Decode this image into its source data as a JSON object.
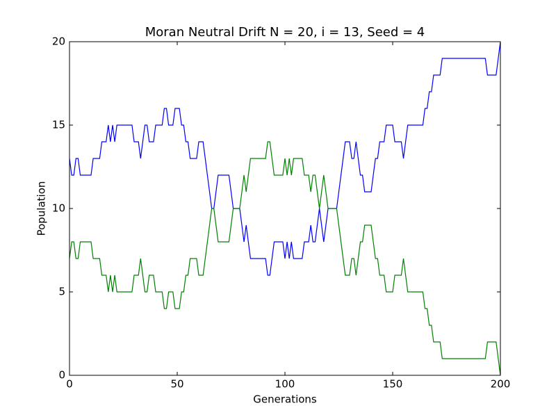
{
  "chart_data": {
    "type": "line",
    "title": "Moran Neutral Drift N = 20, i = 13, Seed = 4",
    "x_label": "Generations",
    "y_label": "Population",
    "x": [
      0,
      1,
      2,
      3,
      4,
      5,
      6,
      7,
      8,
      9,
      10,
      11,
      12,
      13,
      14,
      15,
      16,
      17,
      18,
      19,
      20,
      21,
      22,
      23,
      24,
      25,
      26,
      27,
      28,
      29,
      30,
      31,
      32,
      33,
      34,
      35,
      36,
      37,
      38,
      39,
      40,
      41,
      42,
      43,
      44,
      45,
      46,
      47,
      48,
      49,
      50,
      51,
      52,
      53,
      54,
      55,
      56,
      57,
      58,
      59,
      60,
      61,
      62,
      63,
      64,
      65,
      66,
      67,
      68,
      69,
      70,
      71,
      72,
      73,
      74,
      75,
      76,
      77,
      78,
      79,
      80,
      81,
      82,
      83,
      84,
      85,
      86,
      87,
      88,
      89,
      90,
      91,
      92,
      93,
      94,
      95,
      96,
      97,
      98,
      99,
      100,
      101,
      102,
      103,
      104,
      105,
      106,
      107,
      108,
      109,
      110,
      111,
      112,
      113,
      114,
      115,
      116,
      117,
      118,
      119,
      120,
      121,
      122,
      123,
      124,
      125,
      126,
      127,
      128,
      129,
      130,
      131,
      132,
      133,
      134,
      135,
      136,
      137,
      138,
      139,
      140,
      141,
      142,
      143,
      144,
      145,
      146,
      147,
      148,
      149,
      150,
      151,
      152,
      153,
      154,
      155,
      156,
      157,
      158,
      159,
      160,
      161,
      162,
      163,
      164,
      165,
      166,
      167,
      168,
      169,
      170,
      171,
      172,
      173,
      174,
      175,
      176,
      177,
      178,
      179,
      180,
      181,
      182,
      183,
      184,
      185,
      186,
      187,
      188,
      189,
      190,
      191,
      192,
      193,
      194,
      195,
      196,
      197,
      198,
      199,
      200
    ],
    "series": [
      {
        "color": "#0000ff",
        "values": [
          13,
          12,
          12,
          13,
          13,
          12,
          12,
          12,
          12,
          12,
          12,
          13,
          13,
          13,
          13,
          14,
          14,
          14,
          15,
          14,
          15,
          14,
          15,
          15,
          15,
          15,
          15,
          15,
          15,
          15,
          14,
          14,
          14,
          13,
          14,
          15,
          15,
          14,
          14,
          14,
          15,
          15,
          15,
          15,
          16,
          16,
          15,
          15,
          15,
          16,
          16,
          16,
          15,
          15,
          14,
          14,
          13,
          13,
          13,
          13,
          14,
          14,
          14,
          13,
          12,
          11,
          10,
          10,
          11,
          12,
          12,
          12,
          12,
          12,
          12,
          11,
          10,
          10,
          10,
          10,
          9,
          8,
          9,
          8,
          7,
          7,
          7,
          7,
          7,
          7,
          7,
          7,
          6,
          6,
          7,
          8,
          8,
          8,
          8,
          8,
          7,
          8,
          7,
          8,
          7,
          7,
          7,
          7,
          7,
          8,
          8,
          8,
          9,
          8,
          8,
          9,
          10,
          9,
          8,
          9,
          10,
          10,
          10,
          10,
          10,
          11,
          12,
          13,
          14,
          14,
          14,
          13,
          13,
          14,
          13,
          12,
          12,
          11,
          11,
          11,
          11,
          12,
          13,
          13,
          14,
          14,
          14,
          15,
          15,
          15,
          15,
          14,
          14,
          14,
          14,
          13,
          14,
          15,
          15,
          15,
          15,
          15,
          15,
          15,
          15,
          16,
          16,
          17,
          17,
          18,
          18,
          18,
          18,
          19,
          19,
          19,
          19,
          19,
          19,
          19,
          19,
          19,
          19,
          19,
          19,
          19,
          19,
          19,
          19,
          19,
          19,
          19,
          19,
          19,
          18,
          18,
          18,
          18,
          18,
          19,
          20
        ]
      },
      {
        "color": "#008000",
        "values": [
          7,
          8,
          8,
          7,
          7,
          8,
          8,
          8,
          8,
          8,
          8,
          7,
          7,
          7,
          7,
          6,
          6,
          6,
          5,
          6,
          5,
          6,
          5,
          5,
          5,
          5,
          5,
          5,
          5,
          5,
          6,
          6,
          6,
          7,
          6,
          5,
          5,
          6,
          6,
          6,
          5,
          5,
          5,
          5,
          4,
          4,
          5,
          5,
          5,
          4,
          4,
          4,
          5,
          5,
          6,
          6,
          7,
          7,
          7,
          7,
          6,
          6,
          6,
          7,
          8,
          9,
          10,
          10,
          9,
          8,
          8,
          8,
          8,
          8,
          8,
          9,
          10,
          10,
          10,
          10,
          11,
          12,
          11,
          12,
          13,
          13,
          13,
          13,
          13,
          13,
          13,
          13,
          14,
          14,
          13,
          12,
          12,
          12,
          12,
          12,
          13,
          12,
          13,
          12,
          13,
          13,
          13,
          13,
          13,
          12,
          12,
          12,
          11,
          12,
          12,
          11,
          10,
          11,
          12,
          11,
          10,
          10,
          10,
          10,
          10,
          9,
          8,
          7,
          6,
          6,
          6,
          7,
          7,
          6,
          7,
          8,
          8,
          9,
          9,
          9,
          9,
          8,
          7,
          7,
          6,
          6,
          6,
          5,
          5,
          5,
          5,
          6,
          6,
          6,
          6,
          7,
          6,
          5,
          5,
          5,
          5,
          5,
          5,
          5,
          5,
          4,
          4,
          3,
          3,
          2,
          2,
          2,
          2,
          1,
          1,
          1,
          1,
          1,
          1,
          1,
          1,
          1,
          1,
          1,
          1,
          1,
          1,
          1,
          1,
          1,
          1,
          1,
          1,
          1,
          2,
          2,
          2,
          2,
          2,
          1,
          0
        ]
      }
    ],
    "xlim": [
      0,
      200
    ],
    "xticks": [
      0,
      50,
      100,
      150,
      200
    ],
    "ylim": [
      0,
      20
    ],
    "yticks": [
      0,
      5,
      10,
      15,
      20
    ]
  }
}
